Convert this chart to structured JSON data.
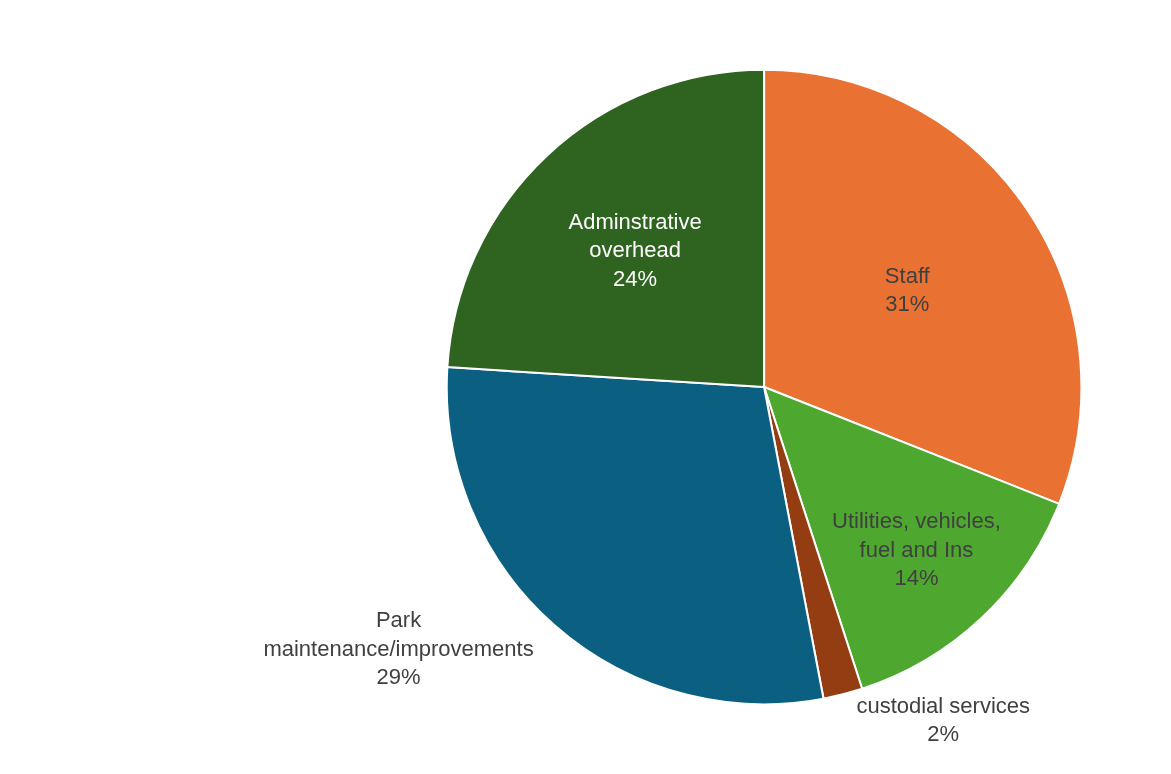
{
  "chart_data": {
    "type": "pie",
    "categories": [
      "Staff",
      "Utilities, vehicles, fuel and Ins",
      "custodial services",
      "Park maintenance/improvements",
      "Adminstrative overhead"
    ],
    "values": [
      31,
      14,
      2,
      29,
      24
    ],
    "value_labels": [
      "31%",
      "14%",
      "2%",
      "29%",
      "24%"
    ],
    "colors": [
      "#e97132",
      "#4ea72e",
      "#953d12",
      "#0b5f80",
      "#2f6320"
    ],
    "legend": false
  }
}
